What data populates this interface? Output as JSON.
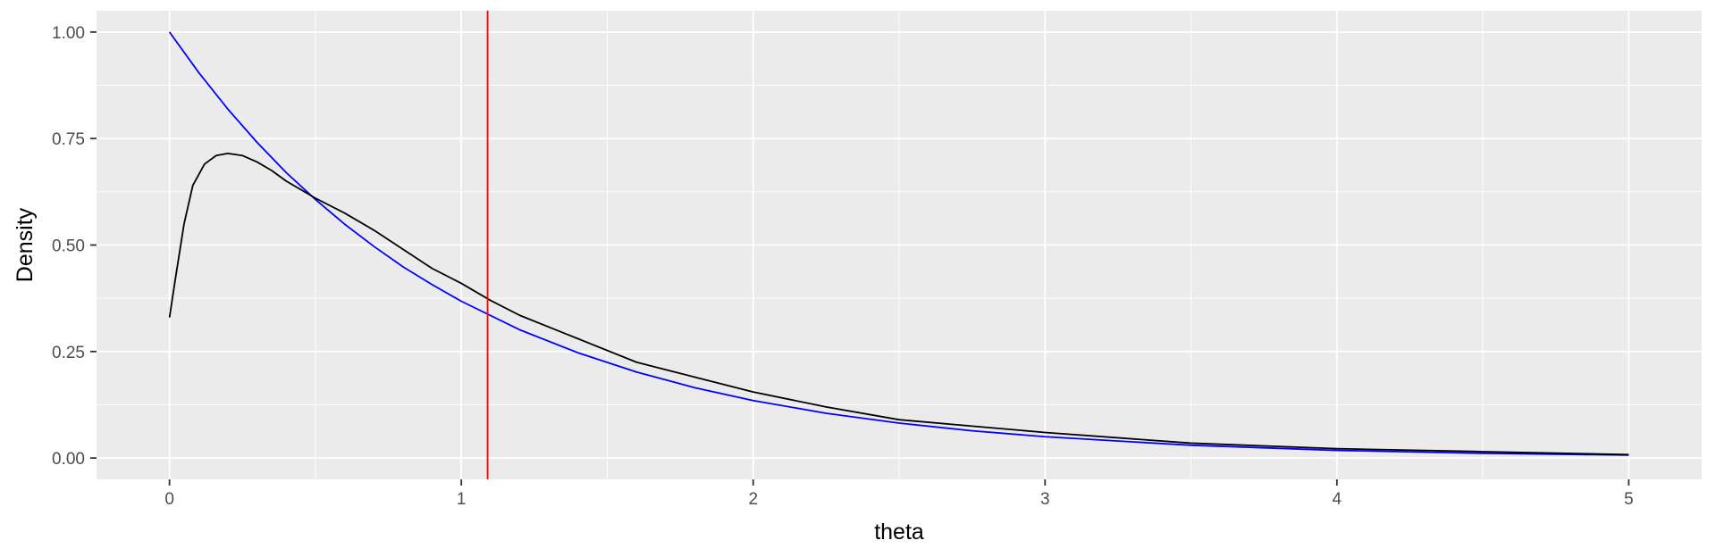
{
  "chart_data": {
    "type": "line",
    "title": "",
    "xlabel": "theta",
    "ylabel": "Density",
    "xlim": [
      -0.25,
      5.25
    ],
    "ylim": [
      -0.05,
      1.05
    ],
    "x_ticks": [
      0,
      1,
      2,
      3,
      4,
      5
    ],
    "x_tick_labels": [
      "0",
      "1",
      "2",
      "3",
      "4",
      "5"
    ],
    "y_ticks": [
      0,
      0.25,
      0.5,
      0.75,
      1.0
    ],
    "y_tick_labels": [
      "0.00",
      "0.25",
      "0.50",
      "0.75",
      "1.00"
    ],
    "grid": true,
    "legend": "none",
    "panel_background": "#ebebeb",
    "grid_color": "#ffffff",
    "series": [
      {
        "color": "#0000ff",
        "x": [
          0,
          0.1,
          0.2,
          0.3,
          0.4,
          0.5,
          0.6,
          0.7,
          0.8,
          0.9,
          1.0,
          1.2,
          1.4,
          1.6,
          1.8,
          2.0,
          2.25,
          2.5,
          2.75,
          3.0,
          3.5,
          4.0,
          4.5,
          5.0
        ],
        "y": [
          1.0,
          0.905,
          0.819,
          0.741,
          0.67,
          0.607,
          0.549,
          0.497,
          0.449,
          0.407,
          0.368,
          0.301,
          0.247,
          0.202,
          0.165,
          0.135,
          0.105,
          0.082,
          0.064,
          0.05,
          0.03,
          0.018,
          0.011,
          0.007
        ]
      },
      {
        "color": "#000000",
        "x": [
          0,
          0.02,
          0.05,
          0.08,
          0.12,
          0.16,
          0.2,
          0.25,
          0.3,
          0.35,
          0.4,
          0.5,
          0.6,
          0.7,
          0.8,
          0.9,
          1.0,
          1.1,
          1.2,
          1.4,
          1.6,
          1.8,
          2.0,
          2.25,
          2.5,
          2.75,
          3.0,
          3.5,
          4.0,
          4.5,
          5.0
        ],
        "y": [
          0.33,
          0.42,
          0.55,
          0.64,
          0.69,
          0.71,
          0.715,
          0.71,
          0.695,
          0.675,
          0.65,
          0.61,
          0.575,
          0.535,
          0.49,
          0.445,
          0.41,
          0.37,
          0.335,
          0.28,
          0.225,
          0.19,
          0.155,
          0.12,
          0.09,
          0.075,
          0.06,
          0.035,
          0.022,
          0.015,
          0.008
        ]
      }
    ],
    "vlines": [
      {
        "x": 1.09,
        "color": "#ff0000"
      }
    ]
  }
}
